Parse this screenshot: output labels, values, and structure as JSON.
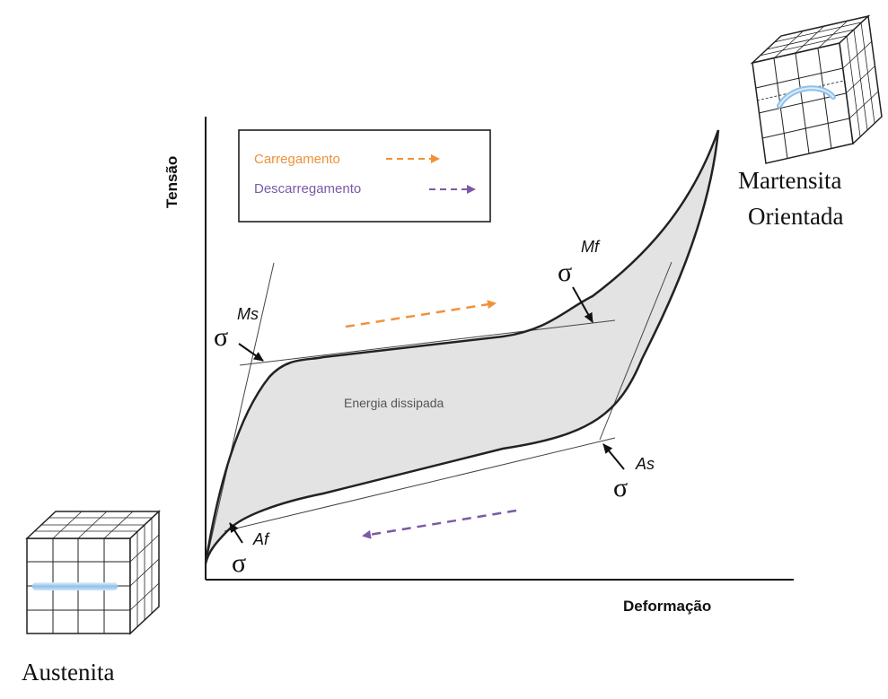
{
  "axes": {
    "y_label": "Tensão",
    "x_label": "Deformação"
  },
  "legend": {
    "loading_label": "Carregamento",
    "unloading_label": "Descarregamento",
    "loading_color": "#f0913a",
    "unloading_color": "#7b5aa6"
  },
  "region_label": "Energia dissipada",
  "stress_points": {
    "symbol": "σ",
    "ms": "Ms",
    "mf": "Mf",
    "as": "As",
    "af": "Af"
  },
  "phases": {
    "austenite": "Austenita",
    "martensite_line1": "Martensita",
    "martensite_line2": "Orientada"
  },
  "icons": [
    "austenite-cube-icon",
    "martensite-cube-icon",
    "arrow-icon"
  ]
}
